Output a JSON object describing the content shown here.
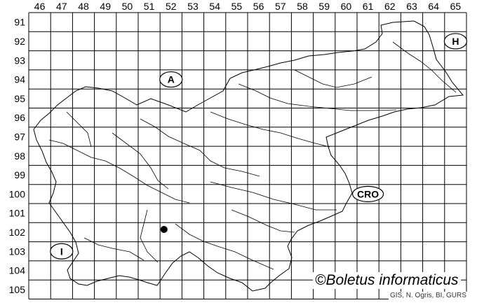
{
  "map": {
    "column_labels": [
      "46",
      "47",
      "48",
      "49",
      "50",
      "51",
      "52",
      "53",
      "54",
      "55",
      "56",
      "57",
      "58",
      "59",
      "60",
      "61",
      "62",
      "63",
      "64",
      "65"
    ],
    "row_labels": [
      "91",
      "92",
      "93",
      "94",
      "95",
      "96",
      "97",
      "98",
      "99",
      "100",
      "101",
      "102",
      "103",
      "104",
      "105"
    ],
    "neighbor_labels": [
      {
        "text": "A",
        "col": "52",
        "row": "94"
      },
      {
        "text": "H",
        "col": "65",
        "row": "92"
      },
      {
        "text": "CRO",
        "col": "61",
        "row": "100"
      },
      {
        "text": "I",
        "col": "47",
        "row": "103"
      }
    ],
    "occurrences": [
      {
        "col": "52",
        "row": "102"
      }
    ],
    "colors": {
      "grid": "#000000",
      "border": "#000000",
      "rivers": "#000000",
      "point": "#000000"
    }
  },
  "copyright": "©Boletus informaticus",
  "credit": "GIS, N. Ogris, BI, GURS"
}
